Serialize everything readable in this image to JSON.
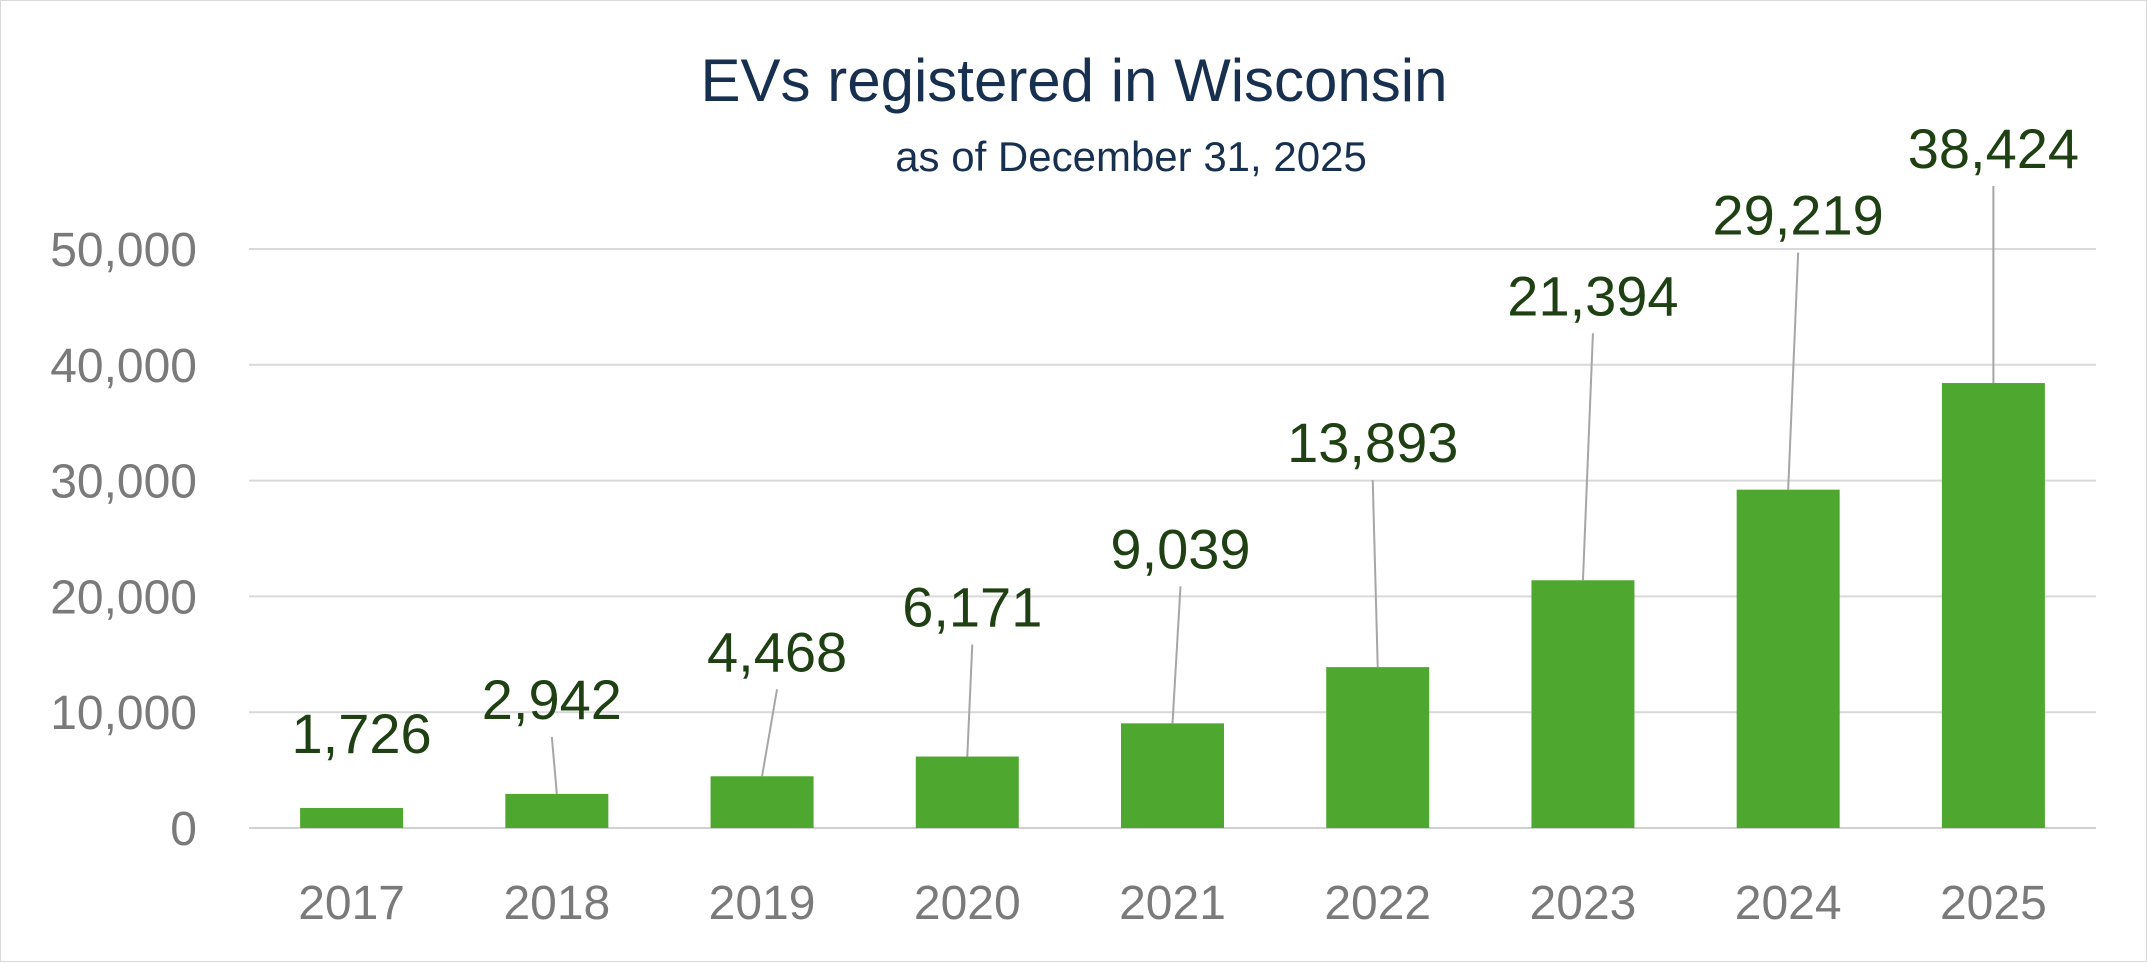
{
  "chart_data": {
    "type": "bar",
    "title": "EVs registered in Wisconsin",
    "subtitle": "as of December 31, 2025",
    "categories": [
      "2017",
      "2018",
      "2019",
      "2020",
      "2021",
      "2022",
      "2023",
      "2024",
      "2025"
    ],
    "values": [
      1726,
      2942,
      4468,
      6171,
      9039,
      13893,
      21394,
      29219,
      38424
    ],
    "value_labels": [
      "1,726",
      "2,942",
      "4,468",
      "6,171",
      "9,039",
      "13,893",
      "21,394",
      "29,219",
      "38,424"
    ],
    "xlabel": "",
    "ylabel": "",
    "ylim": [
      0,
      50000
    ],
    "yticks": [
      0,
      10000,
      20000,
      30000,
      40000,
      50000
    ],
    "ytick_labels": [
      "0",
      "10,000",
      "20,000",
      "30,000",
      "40,000",
      "50,000"
    ],
    "grid": true,
    "legend": "none",
    "colors": {
      "bar": "#4ea72e",
      "title": "#17304f",
      "data_label": "#1e4012",
      "tick_label": "#7a7a7a",
      "gridline": "#d9d9d9",
      "leader_line": "#a6a6a6"
    }
  }
}
